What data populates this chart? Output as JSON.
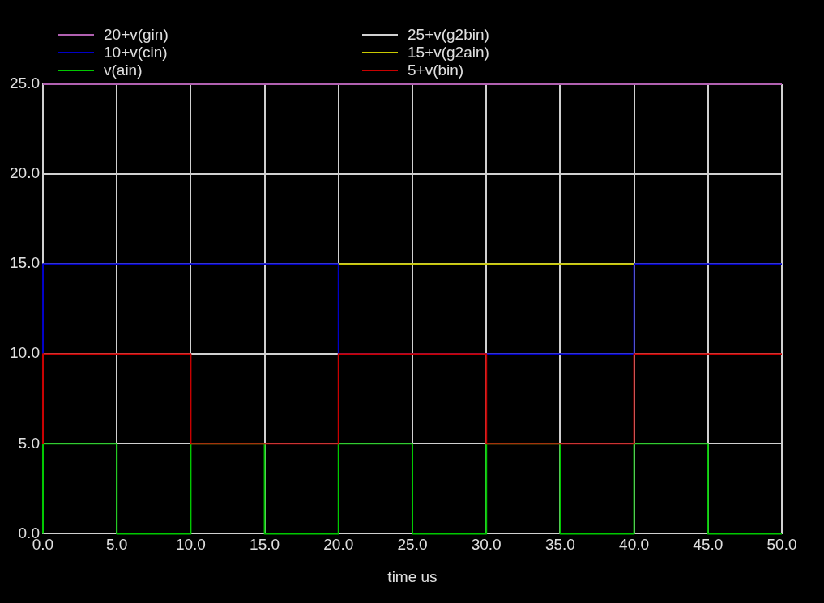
{
  "chart_data": {
    "type": "step",
    "xlabel": "time us",
    "xlim": [
      0,
      50
    ],
    "xticks": [
      {
        "value": 0,
        "label": "0.0"
      },
      {
        "value": 5,
        "label": "5.0"
      },
      {
        "value": 10,
        "label": "10.0"
      },
      {
        "value": 15,
        "label": "15.0"
      },
      {
        "value": 20,
        "label": "20.0"
      },
      {
        "value": 25,
        "label": "25.0"
      },
      {
        "value": 30,
        "label": "30.0"
      },
      {
        "value": 35,
        "label": "35.0"
      },
      {
        "value": 40,
        "label": "40.0"
      },
      {
        "value": 45,
        "label": "45.0"
      },
      {
        "value": 50,
        "label": "50.0"
      }
    ],
    "ylim": [
      0,
      25
    ],
    "yticks": [
      {
        "value": 0,
        "label": "0.0"
      },
      {
        "value": 5,
        "label": "5.0"
      },
      {
        "value": 10,
        "label": "10.0"
      },
      {
        "value": 15,
        "label": "15.0"
      },
      {
        "value": 20,
        "label": "20.0"
      },
      {
        "value": 25,
        "label": "25.0"
      }
    ],
    "grid": true,
    "legend": "top",
    "marker": "none",
    "line_style": "solid",
    "series": [
      {
        "name": "20+v(gin)",
        "color": "#b060b0",
        "x": [
          0,
          50
        ],
        "values": [
          25,
          25
        ]
      },
      {
        "name": "10+v(cin)",
        "color": "#0000c8",
        "x": [
          0,
          0,
          5,
          10,
          15,
          20,
          30,
          35,
          40,
          45,
          50
        ],
        "values": [
          10,
          15,
          15,
          15,
          15,
          10,
          10,
          10,
          15,
          15,
          15
        ]
      },
      {
        "name": "v(ain)",
        "color": "#00c800",
        "x": [
          0,
          0,
          5,
          10,
          15,
          20,
          25,
          30,
          35,
          40,
          45,
          50
        ],
        "values": [
          0,
          5,
          0,
          5,
          0,
          5,
          0,
          5,
          0,
          5,
          0,
          0
        ]
      },
      {
        "name": "25+v(g2bin)",
        "color": "#d0d0d0"
      },
      {
        "name": "15+v(g2ain)",
        "color": "#c8c800",
        "x": [
          20,
          40
        ],
        "values": [
          15,
          15
        ]
      },
      {
        "name": "5+v(bin)",
        "color": "#c80000",
        "x": [
          0,
          0,
          5,
          10,
          15,
          20,
          25,
          30,
          35,
          40,
          45,
          50
        ],
        "values": [
          5,
          10,
          10,
          5,
          5,
          10,
          10,
          5,
          5,
          10,
          10,
          10
        ]
      }
    ]
  }
}
